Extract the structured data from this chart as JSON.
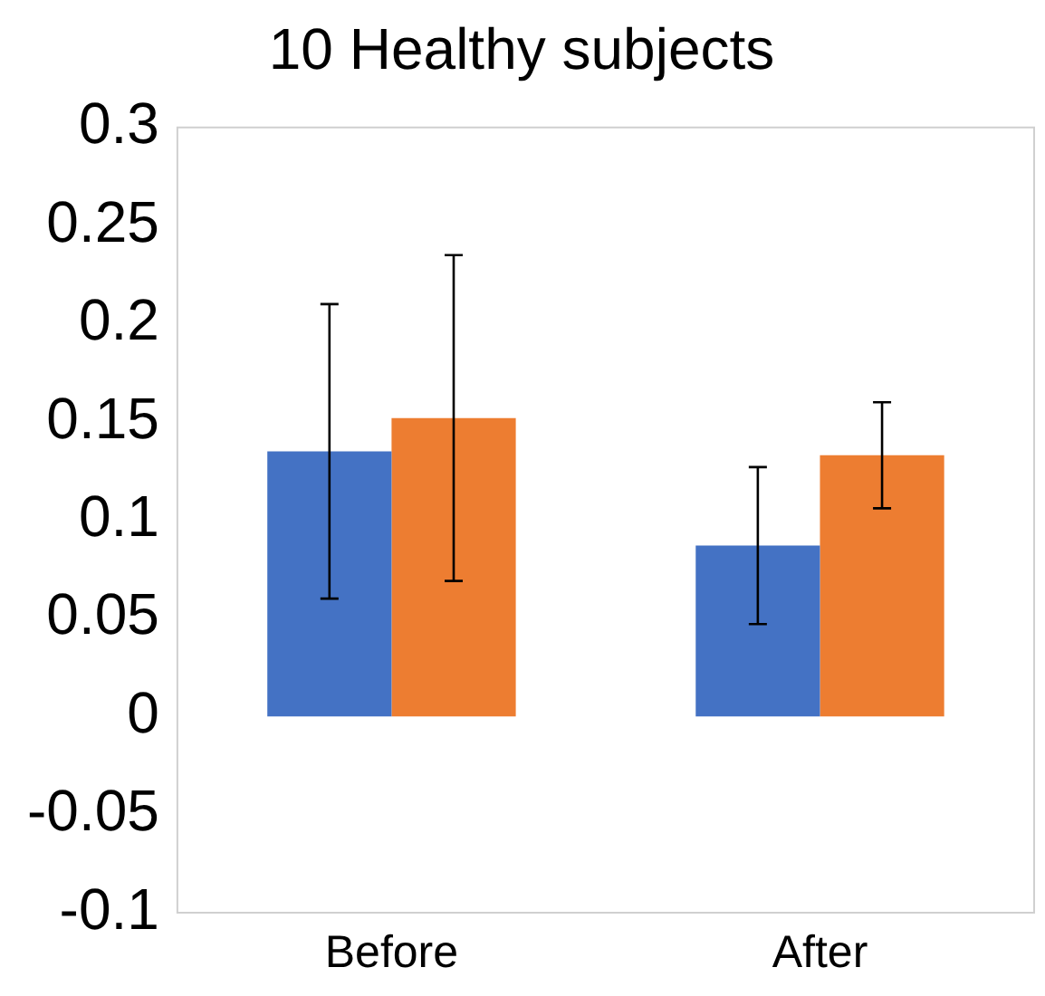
{
  "chart_data": {
    "type": "bar",
    "title": "10 Healthy subjects",
    "categories": [
      "Before",
      "After"
    ],
    "series": [
      {
        "color": "#4472c4",
        "values": [
          0.135,
          0.087
        ],
        "errors": [
          0.075,
          0.04
        ]
      },
      {
        "color": "#ed7d31",
        "values": [
          0.152,
          0.133
        ],
        "errors": [
          0.083,
          0.027
        ]
      }
    ],
    "ylim": [
      -0.1,
      0.3
    ],
    "yticks": [
      -0.1,
      -0.05,
      0,
      0.05,
      0.1,
      0.15,
      0.2,
      0.25,
      0.3
    ],
    "grid": false,
    "legend": false
  }
}
